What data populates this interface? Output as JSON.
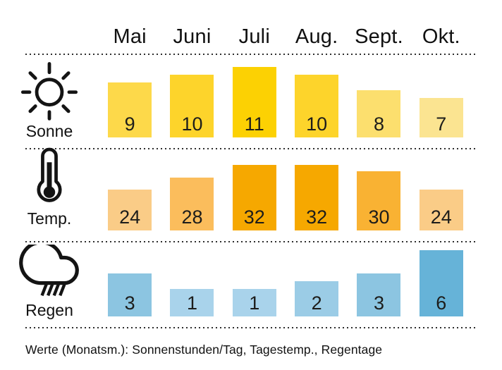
{
  "months": [
    "Mai",
    "Juni",
    "Juli",
    "Aug.",
    "Sept.",
    "Okt."
  ],
  "rows": [
    {
      "id": "sonne",
      "label": "Sonne",
      "icon": "sun-icon",
      "values": [
        9,
        10,
        11,
        10,
        8,
        7
      ],
      "colors": [
        "#FDD94A",
        "#FDD42B",
        "#FCD103",
        "#FDD42B",
        "#FCDF6E",
        "#FBE491"
      ]
    },
    {
      "id": "temp",
      "label": "Temp.",
      "icon": "thermometer-icon",
      "values": [
        24,
        28,
        32,
        32,
        30,
        24
      ],
      "colors": [
        "#FACC87",
        "#FBBD5C",
        "#F6A800",
        "#F6A800",
        "#F9B233",
        "#FACC87"
      ]
    },
    {
      "id": "regen",
      "label": "Regen",
      "icon": "rain-cloud-icon",
      "values": [
        3,
        1,
        1,
        2,
        3,
        6
      ],
      "colors": [
        "#8CC5E1",
        "#A9D3EB",
        "#A9D3EB",
        "#9BCCE6",
        "#8CC5E1",
        "#66B3D8"
      ]
    }
  ],
  "footer": "Werte (Monatsm.): Sonnenstunden/Tag, Tagestemp., Regentage",
  "chart_data": {
    "type": "bar",
    "categories": [
      "Mai",
      "Juni",
      "Juli",
      "Aug.",
      "Sept.",
      "Okt."
    ],
    "series": [
      {
        "name": "Sonne (Sonnenstunden/Tag)",
        "values": [
          9,
          10,
          11,
          10,
          8,
          7
        ]
      },
      {
        "name": "Temp. (Tagestemp.)",
        "values": [
          24,
          28,
          32,
          32,
          30,
          24
        ]
      },
      {
        "name": "Regen (Regentage)",
        "values": [
          3,
          1,
          1,
          2,
          3,
          6
        ]
      }
    ],
    "title": "",
    "xlabel": "",
    "ylabel": "",
    "note": "Werte (Monatsm.): Sonnenstunden/Tag, Tagestemp., Regentage",
    "legend_position": "row icons left (Sonne / Temp. / Regen)",
    "grid": false
  }
}
